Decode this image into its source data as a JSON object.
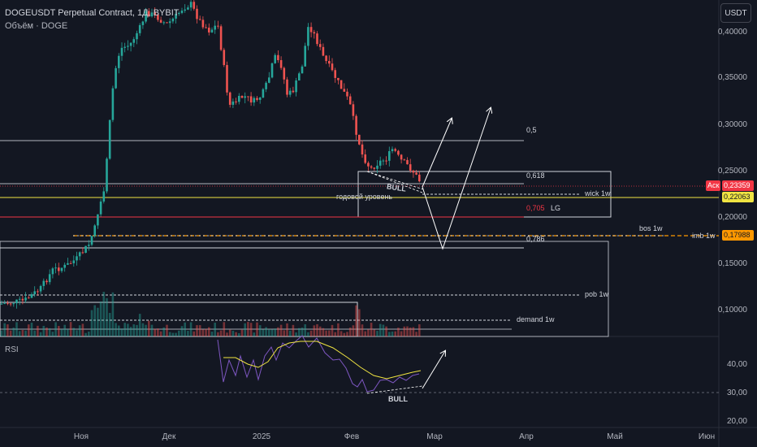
{
  "header": {
    "title": "DOGEUSDT Perpetual Contract, 1Д, BYBIT",
    "volume_label": "Объём · DOGE"
  },
  "currency_button": "USDT",
  "price_axis": [
    "0,40000",
    "0,35000",
    "0,30000",
    "0,25000",
    "0,20000",
    "0,15000",
    "0,10000"
  ],
  "price_tags": {
    "ask_label": "Аск",
    "ask_value": "0,23359",
    "yearly_value": "0,22063",
    "imb_value": "0,17988"
  },
  "rsi_axis": [
    "40,00",
    "30,00",
    "20,00"
  ],
  "rsi_label": "RSI",
  "time_axis": [
    "Ноя",
    "Дек",
    "2025",
    "Фев",
    "Мар",
    "Апр",
    "Май",
    "Июн"
  ],
  "annotations": {
    "fib_05": "0,5",
    "fib_0618": "0,618",
    "fib_0705": "0,705",
    "lg": "LG",
    "fib_0786": "0,786",
    "wick": "wick 1w",
    "yearly_level": "годовой уровень",
    "bull_price": "BULL",
    "bos": "bos 1w",
    "imb": "imb 1w",
    "pob": "pob 1w",
    "demand": "demand 1w",
    "bull_rsi": "BULL"
  },
  "colors": {
    "background": "#131722",
    "bull_candle": "#26a69a",
    "bear_candle": "#ef5350",
    "yellow_level": "#f0e442",
    "red_level": "#f23645",
    "orange_level": "#ff9800",
    "rsi_line": "#7e57c2",
    "rsi_ma": "#f0e442"
  }
}
